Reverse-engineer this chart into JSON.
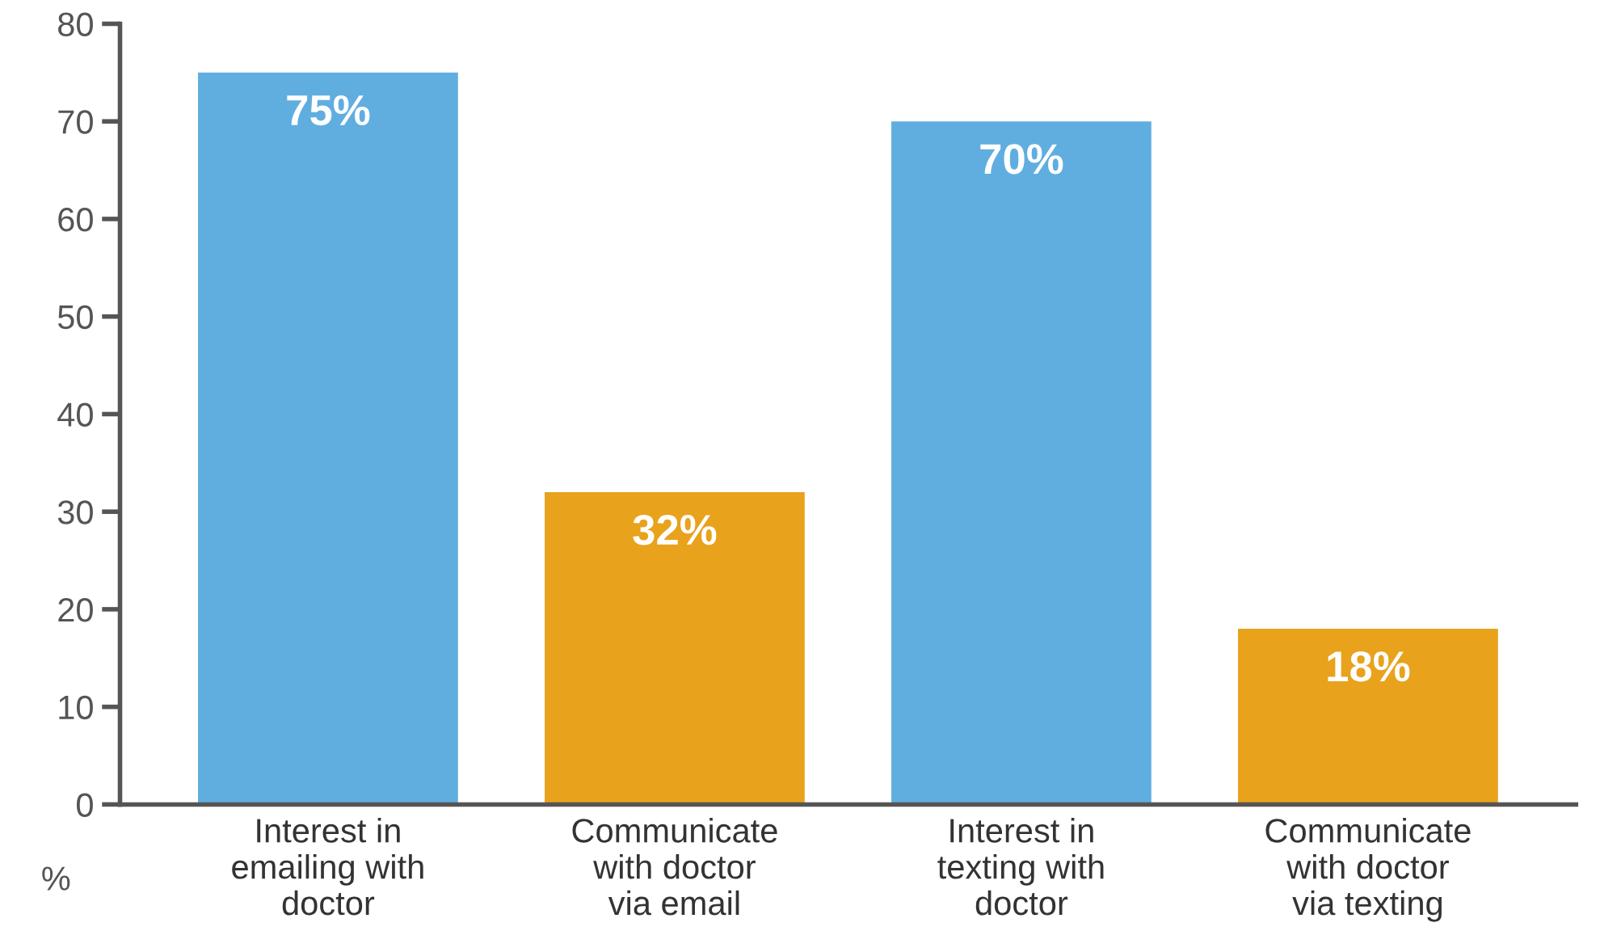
{
  "chart_data": {
    "type": "bar",
    "ylabel": "%",
    "categories": [
      "Interest in\nemailing with\ndoctor",
      "Communicate\nwith doctor\nvia email",
      "Interest in\ntexting with\ndoctor",
      "Communicate\nwith doctor\nvia texting"
    ],
    "values": [
      75,
      32,
      70,
      18
    ],
    "colors": [
      "#60aee0",
      "#e8a21c",
      "#60aee0",
      "#e8a21c"
    ],
    "value_labels": [
      "75%",
      "32%",
      "70%",
      "18%"
    ],
    "ylim": [
      0,
      80
    ],
    "yticks": [
      0,
      10,
      20,
      30,
      40,
      50,
      60,
      70,
      80
    ],
    "grid": false,
    "legend": false
  }
}
